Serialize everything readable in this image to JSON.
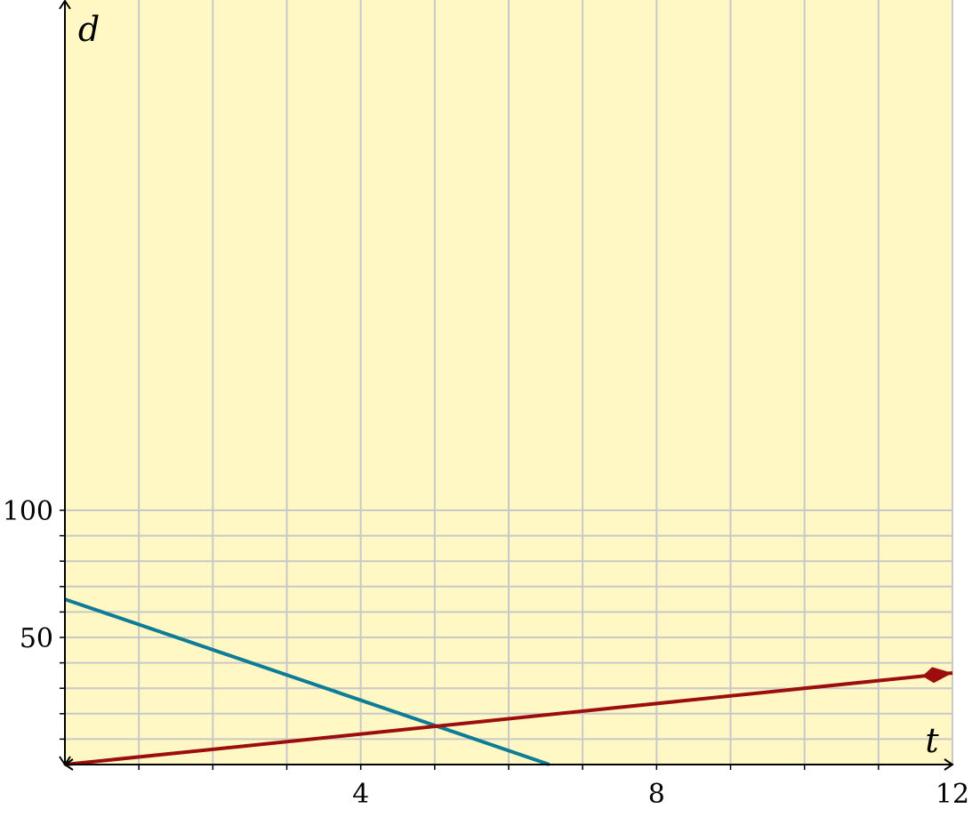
{
  "chart_data": {
    "type": "line",
    "xlabel": "t",
    "ylabel": "d",
    "xlim": [
      0,
      12
    ],
    "ylim": [
      0,
      300
    ],
    "x_ticks": [
      {
        "value": 4,
        "label": "4"
      },
      {
        "value": 8,
        "label": "8"
      },
      {
        "value": 12,
        "label": "12"
      }
    ],
    "y_ticks": [
      {
        "value": 50,
        "label": "50"
      },
      {
        "value": 100,
        "label": "100"
      }
    ],
    "x_grid_step": 1,
    "y_grid_max": 100,
    "y_grid_step": 10,
    "grid": true,
    "background_color": "#fff8c4",
    "grid_color": "#c8c8c8",
    "series": [
      {
        "color": "#0e7c96",
        "x": [
          0,
          6.55
        ],
        "y": [
          65,
          0
        ],
        "end_arrow": false
      },
      {
        "color": "#9c0d0d",
        "x": [
          0,
          12
        ],
        "y": [
          0,
          36
        ],
        "end_arrow": true
      }
    ]
  }
}
